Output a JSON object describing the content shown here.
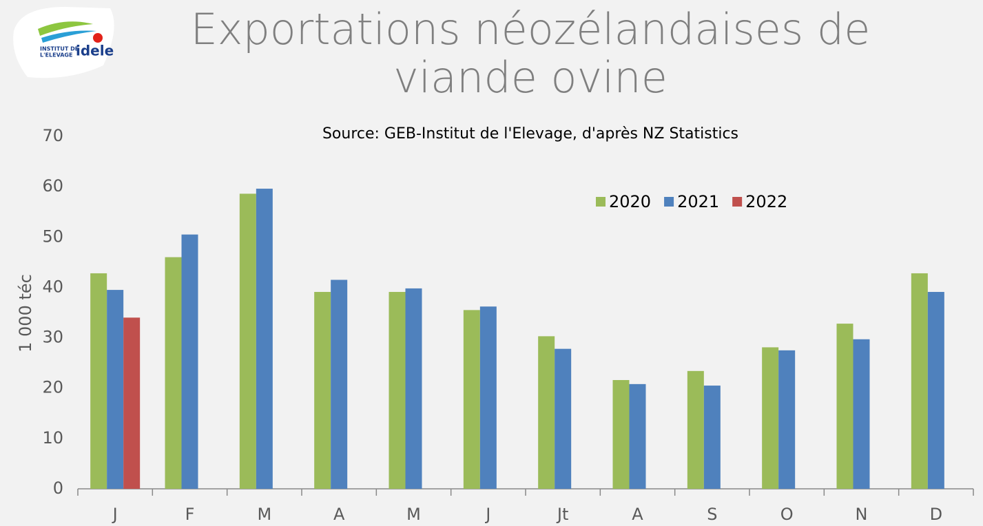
{
  "logo": {
    "line1": "INSTITUT DE",
    "line2": "L'ELEVAGE",
    "brand": "idele"
  },
  "chart_data": {
    "type": "bar",
    "title": "Exportations néozélandaises de viande ovine",
    "subtitle": "Source: GEB-Institut de l'Elevage, d'après NZ Statistics",
    "y_label": "1 000 téc",
    "categories": [
      "J",
      "F",
      "M",
      "A",
      "M",
      "J",
      "Jt",
      "A",
      "S",
      "O",
      "N",
      "D"
    ],
    "series": [
      {
        "name": "2020",
        "color": "#9bbb59",
        "values": [
          42.8,
          46,
          58.6,
          39.1,
          39.1,
          35.5,
          30.3,
          21.6,
          23.4,
          28.1,
          32.8,
          42.8
        ]
      },
      {
        "name": "2021",
        "color": "#4f81bd",
        "values": [
          39.5,
          50.5,
          59.6,
          41.5,
          39.8,
          36.2,
          27.8,
          20.8,
          20.5,
          27.5,
          29.7,
          39.1
        ]
      },
      {
        "name": "2022",
        "color": "#c0504d",
        "values": [
          34,
          null,
          null,
          null,
          null,
          null,
          null,
          null,
          null,
          null,
          null,
          null
        ]
      }
    ],
    "ylim": [
      0,
      70
    ],
    "yticks": [
      0,
      10,
      20,
      30,
      40,
      50,
      60,
      70
    ],
    "grid": false,
    "legend": "top-right"
  }
}
